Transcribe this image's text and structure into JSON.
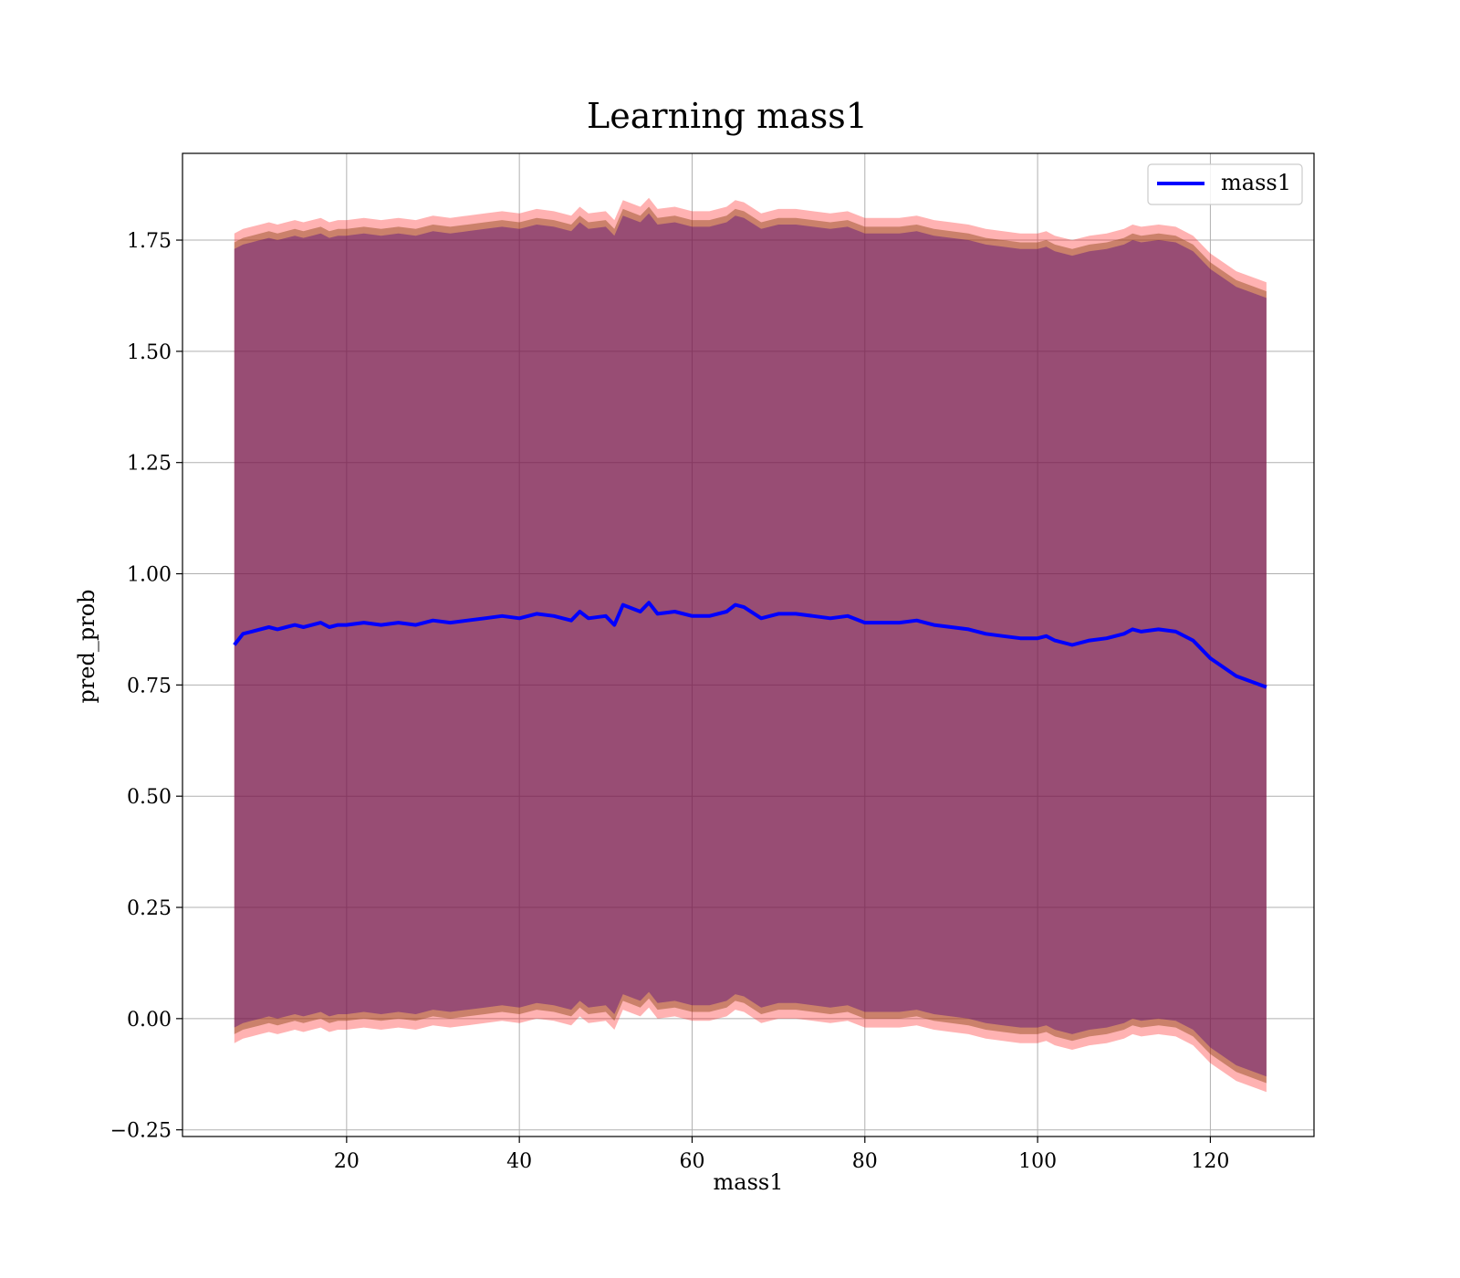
{
  "chart_data": {
    "type": "line",
    "title": "Learning mass1",
    "xlabel": "mass1",
    "ylabel": "pred_prob",
    "xlim": [
      1,
      132
    ],
    "ylim": [
      -0.265,
      1.945
    ],
    "x_ticks": [
      20,
      40,
      60,
      80,
      100,
      120
    ],
    "x_tick_labels": [
      "20",
      "40",
      "60",
      "80",
      "100",
      "120"
    ],
    "y_ticks": [
      -0.25,
      0.0,
      0.25,
      0.5,
      0.75,
      1.0,
      1.25,
      1.5,
      1.75
    ],
    "y_tick_labels": [
      "−0.25",
      "0.00",
      "0.25",
      "0.50",
      "0.75",
      "1.00",
      "1.25",
      "1.50",
      "1.75"
    ],
    "grid": true,
    "legend": {
      "position": "top-right",
      "entries": [
        "mass1"
      ]
    },
    "colors": {
      "line": "#0000ff",
      "band_outer": "#ff0000",
      "band_inner": "#8b4513",
      "band_core": "#4b0082"
    },
    "series": [
      {
        "name": "mass1",
        "x": [
          7,
          8,
          9,
          10,
          11,
          12,
          13,
          14,
          15,
          16,
          17,
          18,
          19,
          20,
          22,
          24,
          26,
          28,
          30,
          32,
          34,
          36,
          38,
          40,
          42,
          44,
          46,
          47,
          48,
          50,
          51,
          52,
          54,
          55,
          56,
          58,
          60,
          62,
          64,
          65,
          66,
          68,
          70,
          72,
          74,
          76,
          78,
          80,
          82,
          84,
          86,
          88,
          90,
          92,
          94,
          96,
          98,
          100,
          101,
          102,
          104,
          106,
          108,
          110,
          111,
          112,
          114,
          116,
          118,
          120,
          123,
          126.5
        ],
        "y": [
          0.84,
          0.865,
          0.87,
          0.875,
          0.88,
          0.875,
          0.88,
          0.885,
          0.88,
          0.885,
          0.89,
          0.88,
          0.885,
          0.885,
          0.89,
          0.885,
          0.89,
          0.885,
          0.895,
          0.89,
          0.895,
          0.9,
          0.905,
          0.9,
          0.91,
          0.905,
          0.895,
          0.915,
          0.9,
          0.905,
          0.885,
          0.93,
          0.915,
          0.935,
          0.91,
          0.915,
          0.905,
          0.905,
          0.915,
          0.93,
          0.925,
          0.9,
          0.91,
          0.91,
          0.905,
          0.9,
          0.905,
          0.89,
          0.89,
          0.89,
          0.895,
          0.885,
          0.88,
          0.875,
          0.865,
          0.86,
          0.855,
          0.855,
          0.86,
          0.85,
          0.84,
          0.85,
          0.855,
          0.865,
          0.875,
          0.87,
          0.875,
          0.87,
          0.85,
          0.81,
          0.77,
          0.745
        ],
        "lower": [
          -0.035,
          -0.025,
          -0.02,
          -0.015,
          -0.01,
          -0.015,
          -0.01,
          -0.005,
          -0.01,
          -0.005,
          0.0,
          -0.01,
          -0.005,
          -0.005,
          0.0,
          -0.005,
          0.0,
          -0.005,
          0.005,
          0.0,
          0.005,
          0.01,
          0.015,
          0.01,
          0.02,
          0.015,
          0.005,
          0.025,
          0.01,
          0.015,
          -0.005,
          0.04,
          0.025,
          0.045,
          0.02,
          0.025,
          0.015,
          0.015,
          0.025,
          0.04,
          0.035,
          0.01,
          0.02,
          0.02,
          0.015,
          0.01,
          0.015,
          0.0,
          0.0,
          0.0,
          0.005,
          -0.005,
          -0.01,
          -0.015,
          -0.025,
          -0.03,
          -0.035,
          -0.035,
          -0.03,
          -0.04,
          -0.05,
          -0.04,
          -0.035,
          -0.025,
          -0.015,
          -0.02,
          -0.015,
          -0.02,
          -0.04,
          -0.08,
          -0.12,
          -0.145
        ],
        "upper": [
          1.745,
          1.755,
          1.76,
          1.765,
          1.77,
          1.765,
          1.77,
          1.775,
          1.77,
          1.775,
          1.78,
          1.77,
          1.775,
          1.775,
          1.78,
          1.775,
          1.78,
          1.775,
          1.785,
          1.78,
          1.785,
          1.79,
          1.795,
          1.79,
          1.8,
          1.795,
          1.785,
          1.805,
          1.79,
          1.795,
          1.775,
          1.82,
          1.805,
          1.825,
          1.8,
          1.805,
          1.795,
          1.795,
          1.805,
          1.82,
          1.815,
          1.79,
          1.8,
          1.8,
          1.795,
          1.79,
          1.795,
          1.78,
          1.78,
          1.78,
          1.785,
          1.775,
          1.77,
          1.765,
          1.755,
          1.75,
          1.745,
          1.745,
          1.75,
          1.74,
          1.73,
          1.74,
          1.745,
          1.755,
          1.765,
          1.76,
          1.765,
          1.76,
          1.74,
          1.7,
          1.66,
          1.635
        ]
      }
    ]
  }
}
